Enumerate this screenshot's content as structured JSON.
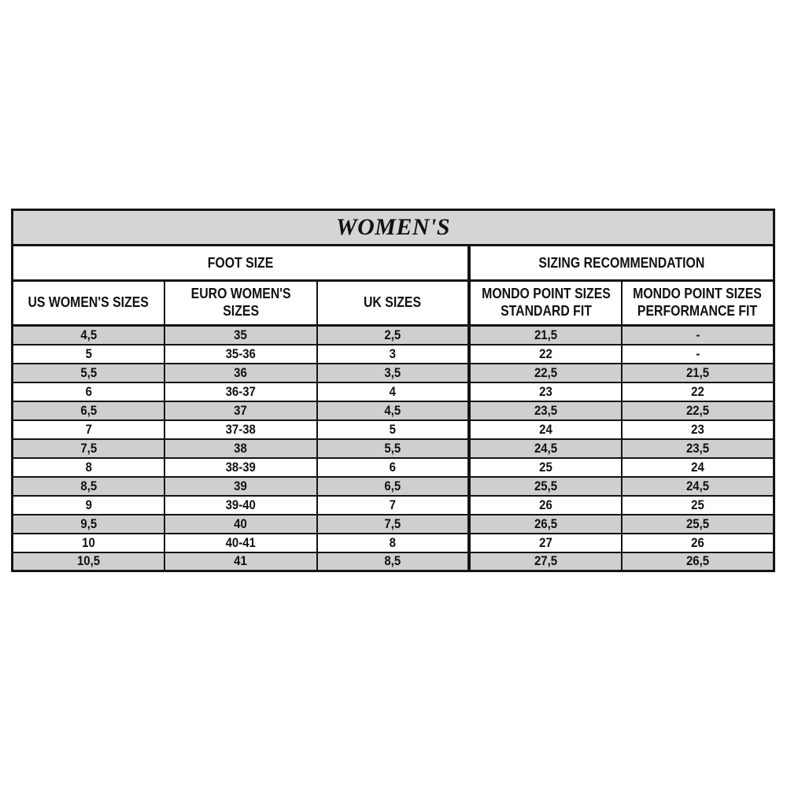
{
  "colors": {
    "title_bg": "#d5d5d5",
    "stripe_bg": "#cfcfcf",
    "border_color": "#141414",
    "text_color": "#111111"
  },
  "table": {
    "title": "WOMEN'S",
    "groups": [
      {
        "label": "FOOT SIZE",
        "span": 3
      },
      {
        "label": "SIZING RECOMMENDATION",
        "span": 2
      }
    ],
    "columns": [
      "US WOMEN'S SIZES",
      "EURO WOMEN'S\nSIZES",
      "UK SIZES",
      "MONDO POINT SIZES\nSTANDARD FIT",
      "MONDO POINT SIZES\nPERFORMANCE FIT"
    ],
    "rows": [
      [
        "4,5",
        "35",
        "2,5",
        "21,5",
        "-"
      ],
      [
        "5",
        "35-36",
        "3",
        "22",
        "-"
      ],
      [
        "5,5",
        "36",
        "3,5",
        "22,5",
        "21,5"
      ],
      [
        "6",
        "36-37",
        "4",
        "23",
        "22"
      ],
      [
        "6,5",
        "37",
        "4,5",
        "23,5",
        "22,5"
      ],
      [
        "7",
        "37-38",
        "5",
        "24",
        "23"
      ],
      [
        "7,5",
        "38",
        "5,5",
        "24,5",
        "23,5"
      ],
      [
        "8",
        "38-39",
        "6",
        "25",
        "24"
      ],
      [
        "8,5",
        "39",
        "6,5",
        "25,5",
        "24,5"
      ],
      [
        "9",
        "39-40",
        "7",
        "26",
        "25"
      ],
      [
        "9,5",
        "40",
        "7,5",
        "26,5",
        "25,5"
      ],
      [
        "10",
        "40-41",
        "8",
        "27",
        "26"
      ],
      [
        "10,5",
        "41",
        "8,5",
        "27,5",
        "26,5"
      ]
    ]
  }
}
